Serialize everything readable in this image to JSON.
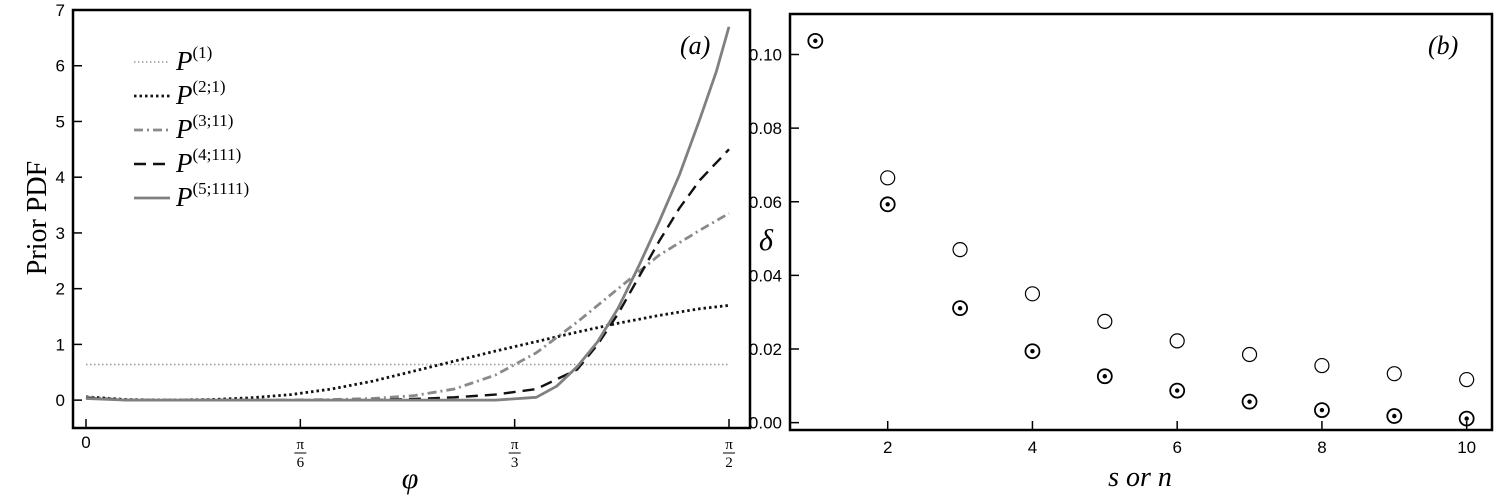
{
  "chart_data": [
    {
      "type": "line",
      "panel_label": "(a)",
      "xlabel": "φ",
      "ylabel": "Prior PDF",
      "xlim": [
        0,
        1.5708
      ],
      "ylim": [
        -0.5,
        7
      ],
      "x_ticks": [
        {
          "value": 0,
          "num": "0",
          "den": ""
        },
        {
          "value": 0.5236,
          "num": "π",
          "den": "6"
        },
        {
          "value": 1.0472,
          "num": "π",
          "den": "3"
        },
        {
          "value": 1.5708,
          "num": "π",
          "den": "2"
        }
      ],
      "y_ticks": [
        "0",
        "1",
        "2",
        "3",
        "4",
        "5",
        "6",
        "7"
      ],
      "legend_position": "top-left",
      "series": [
        {
          "name": "P^{(1)}",
          "base": "P",
          "sup": "(1)",
          "style": "dotted",
          "color": "#9a9a9a",
          "width": 1.4,
          "x": [
            0,
            1.5708
          ],
          "values": [
            0.64,
            0.64
          ]
        },
        {
          "name": "P^{(2;1)}",
          "base": "P",
          "sup": "(2;1)",
          "style": "dotted-dense",
          "color": "#111111",
          "width": 2.8,
          "x": [
            0,
            0.1,
            0.2,
            0.3,
            0.4,
            0.5,
            0.6,
            0.7,
            0.8,
            0.9,
            1.0,
            1.1,
            1.2,
            1.3,
            1.4,
            1.5,
            1.5708
          ],
          "values": [
            0.06,
            0.01,
            0.0,
            0.01,
            0.04,
            0.1,
            0.2,
            0.34,
            0.52,
            0.7,
            0.88,
            1.05,
            1.22,
            1.38,
            1.52,
            1.64,
            1.7
          ]
        },
        {
          "name": "P^{(3;11)}",
          "base": "P",
          "sup": "(3;11)",
          "style": "dashdot",
          "color": "#8a8a8a",
          "width": 2.8,
          "x": [
            0,
            0.1,
            0.2,
            0.3,
            0.4,
            0.5,
            0.6,
            0.7,
            0.8,
            0.9,
            1.0,
            1.1,
            1.2,
            1.3,
            1.4,
            1.5,
            1.5708
          ],
          "values": [
            0.05,
            0.0,
            0.0,
            0.0,
            0.0,
            0.0,
            0.01,
            0.03,
            0.08,
            0.2,
            0.45,
            0.85,
            1.4,
            2.0,
            2.6,
            3.05,
            3.35
          ]
        },
        {
          "name": "P^{(4;111)}",
          "base": "P",
          "sup": "(4;111)",
          "style": "dashed",
          "color": "#111111",
          "width": 2.4,
          "x": [
            0,
            0.1,
            0.2,
            0.3,
            0.4,
            0.5,
            0.6,
            0.7,
            0.8,
            0.9,
            1.0,
            1.1,
            1.2,
            1.25,
            1.3,
            1.35,
            1.4,
            1.45,
            1.5,
            1.5708
          ],
          "values": [
            0.04,
            0.0,
            0.0,
            0.0,
            0.0,
            0.0,
            0.0,
            0.0,
            0.02,
            0.05,
            0.1,
            0.2,
            0.55,
            1.0,
            1.55,
            2.2,
            2.85,
            3.45,
            3.95,
            4.5
          ]
        },
        {
          "name": "P^{(5;1111)}",
          "base": "P",
          "sup": "(5;1111)",
          "style": "solid",
          "color": "#808080",
          "width": 2.8,
          "x": [
            0,
            0.1,
            0.2,
            0.3,
            0.4,
            0.5,
            0.6,
            0.7,
            0.8,
            0.9,
            1.0,
            1.1,
            1.15,
            1.2,
            1.25,
            1.3,
            1.35,
            1.4,
            1.45,
            1.5,
            1.54,
            1.5708
          ],
          "values": [
            0.03,
            0.0,
            0.0,
            0.0,
            0.0,
            0.0,
            0.0,
            0.0,
            0.0,
            0.0,
            0.0,
            0.05,
            0.25,
            0.6,
            1.05,
            1.65,
            2.4,
            3.2,
            4.05,
            5.05,
            5.9,
            6.7
          ]
        }
      ]
    },
    {
      "type": "scatter",
      "panel_label": "(b)",
      "xlabel": "s or n",
      "ylabel": "δ",
      "xlim": [
        0.65,
        10.35
      ],
      "ylim": [
        -0.002,
        0.111
      ],
      "x_ticks": [
        "2",
        "4",
        "6",
        "8",
        "10"
      ],
      "y_ticks": [
        "0.00",
        "0.02",
        "0.04",
        "0.06",
        "0.08",
        "0.10"
      ],
      "series": [
        {
          "marker": "open-circle",
          "x": [
            2,
            3,
            4,
            5,
            6,
            7,
            8,
            9,
            10
          ],
          "values": [
            0.0665,
            0.047,
            0.035,
            0.0275,
            0.0222,
            0.0185,
            0.0155,
            0.0133,
            0.0117
          ]
        },
        {
          "marker": "circled-dot",
          "x": [
            1,
            2,
            3,
            4,
            5,
            6,
            7,
            8,
            9,
            10
          ],
          "values": [
            0.1037,
            0.0593,
            0.0311,
            0.0194,
            0.0126,
            0.0087,
            0.0057,
            0.0034,
            0.0018,
            0.0011
          ]
        }
      ]
    }
  ]
}
